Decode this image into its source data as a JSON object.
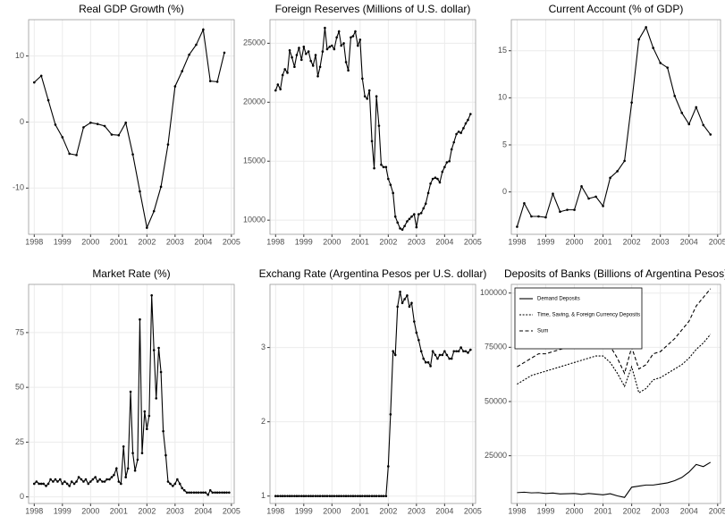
{
  "chart_data": [
    {
      "type": "line",
      "title": "Real GDP Growth (%)",
      "markers": true,
      "color": "#000000",
      "grid": true,
      "x": [
        1998,
        1998.25,
        1998.5,
        1998.75,
        1999,
        1999.25,
        1999.5,
        1999.75,
        2000,
        2000.25,
        2000.5,
        2000.75,
        2001,
        2001.25,
        2001.5,
        2001.75,
        2002,
        2002.25,
        2002.5,
        2002.75,
        2003,
        2003.25,
        2003.5,
        2003.75,
        2004,
        2004.25,
        2004.5,
        2004.75
      ],
      "values": [
        6,
        7,
        3.3,
        -0.4,
        -2.3,
        -4.8,
        -5,
        -0.8,
        -0.1,
        -0.3,
        -0.6,
        -1.9,
        -2,
        -0.1,
        -4.9,
        -10.5,
        -16,
        -13.5,
        -9.8,
        -3.4,
        5.4,
        7.7,
        10.2,
        11.7,
        14,
        6.2,
        6.1,
        10.5
      ],
      "xlim": [
        1997.8,
        2005.1
      ],
      "xticks": [
        1998,
        1999,
        2000,
        2001,
        2002,
        2003,
        2004,
        2005
      ],
      "ylim": [
        -17,
        15.5
      ],
      "yticks": [
        -10,
        0,
        10
      ]
    },
    {
      "type": "line",
      "title": "Foreign Reserves (Millions of U.S. dollar)",
      "markers": true,
      "color": "#000000",
      "grid": true,
      "x": [
        1998,
        1998.08,
        1998.17,
        1998.25,
        1998.33,
        1998.42,
        1998.5,
        1998.58,
        1998.67,
        1998.75,
        1998.83,
        1998.92,
        1999,
        1999.08,
        1999.17,
        1999.25,
        1999.33,
        1999.42,
        1999.5,
        1999.58,
        1999.67,
        1999.75,
        1999.83,
        1999.92,
        2000,
        2000.08,
        2000.17,
        2000.25,
        2000.33,
        2000.42,
        2000.5,
        2000.58,
        2000.67,
        2000.75,
        2000.83,
        2000.92,
        2001,
        2001.08,
        2001.17,
        2001.25,
        2001.33,
        2001.42,
        2001.5,
        2001.58,
        2001.67,
        2001.75,
        2001.83,
        2001.92,
        2002,
        2002.08,
        2002.17,
        2002.25,
        2002.33,
        2002.42,
        2002.5,
        2002.58,
        2002.67,
        2002.75,
        2002.83,
        2002.92,
        2003,
        2003.08,
        2003.17,
        2003.25,
        2003.33,
        2003.42,
        2003.5,
        2003.58,
        2003.67,
        2003.75,
        2003.83,
        2003.92,
        2004,
        2004.08,
        2004.17,
        2004.25,
        2004.33,
        2004.42,
        2004.5,
        2004.58,
        2004.67,
        2004.75,
        2004.83,
        2004.92
      ],
      "values": [
        21000,
        21500,
        21100,
        22300,
        22800,
        22500,
        24400,
        23800,
        23000,
        24000,
        24600,
        23600,
        24700,
        24100,
        24300,
        23500,
        23100,
        24000,
        22200,
        23000,
        24300,
        26300,
        24500,
        24700,
        24800,
        24500,
        25500,
        26000,
        24800,
        25000,
        23400,
        22700,
        25500,
        25600,
        26000,
        24800,
        25300,
        22000,
        20500,
        20300,
        21000,
        16700,
        14400,
        20500,
        18000,
        14700,
        14500,
        14500,
        13500,
        13000,
        12300,
        10300,
        9800,
        9300,
        9200,
        9500,
        9900,
        10100,
        10300,
        10500,
        9400,
        10500,
        10600,
        11000,
        11400,
        12300,
        13100,
        13500,
        13600,
        13500,
        13200,
        14100,
        14500,
        14900,
        15000,
        16000,
        16600,
        17300,
        17500,
        17400,
        17800,
        18200,
        18500,
        19000
      ],
      "xlim": [
        1997.8,
        2005.1
      ],
      "xticks": [
        1998,
        1999,
        2000,
        2001,
        2002,
        2003,
        2004,
        2005
      ],
      "ylim": [
        8800,
        27000
      ],
      "yticks": [
        10000,
        15000,
        20000,
        25000
      ]
    },
    {
      "type": "line",
      "title": "Current Account (% of GDP)",
      "markers": true,
      "color": "#000000",
      "grid": true,
      "x": [
        1998,
        1998.25,
        1998.5,
        1998.75,
        1999,
        1999.25,
        1999.5,
        1999.75,
        2000,
        2000.25,
        2000.5,
        2000.75,
        2001,
        2001.25,
        2001.5,
        2001.75,
        2002,
        2002.25,
        2002.5,
        2002.75,
        2003,
        2003.25,
        2003.5,
        2003.75,
        2004,
        2004.25,
        2004.5,
        2004.75
      ],
      "values": [
        -3.7,
        -1.2,
        -2.6,
        -2.6,
        -2.7,
        -0.2,
        -2.1,
        -1.9,
        -1.9,
        0.6,
        -0.7,
        -0.5,
        -1.5,
        1.5,
        2.2,
        3.3,
        9.5,
        16.2,
        17.5,
        15.3,
        13.7,
        13.2,
        10.2,
        8.4,
        7.2,
        9,
        7.1,
        6.1
      ],
      "xlim": [
        1997.8,
        2005.1
      ],
      "xticks": [
        1998,
        1999,
        2000,
        2001,
        2002,
        2003,
        2004,
        2005
      ],
      "ylim": [
        -4.5,
        18.3
      ],
      "yticks": [
        0,
        5,
        10,
        15
      ]
    },
    {
      "type": "line",
      "title": "Market Rate (%)",
      "markers": true,
      "color": "#000000",
      "grid": true,
      "x": [
        1998,
        1998.08,
        1998.17,
        1998.25,
        1998.33,
        1998.42,
        1998.5,
        1998.58,
        1998.67,
        1998.75,
        1998.83,
        1998.92,
        1999,
        1999.08,
        1999.17,
        1999.25,
        1999.33,
        1999.42,
        1999.5,
        1999.58,
        1999.67,
        1999.75,
        1999.83,
        1999.92,
        2000,
        2000.08,
        2000.17,
        2000.25,
        2000.33,
        2000.42,
        2000.5,
        2000.58,
        2000.67,
        2000.75,
        2000.83,
        2000.92,
        2001,
        2001.08,
        2001.17,
        2001.25,
        2001.33,
        2001.42,
        2001.5,
        2001.58,
        2001.67,
        2001.75,
        2001.83,
        2001.92,
        2002,
        2002.08,
        2002.17,
        2002.25,
        2002.33,
        2002.42,
        2002.5,
        2002.58,
        2002.67,
        2002.75,
        2002.83,
        2002.92,
        2003,
        2003.08,
        2003.17,
        2003.25,
        2003.33,
        2003.42,
        2003.5,
        2003.58,
        2003.67,
        2003.75,
        2003.83,
        2003.92,
        2004,
        2004.08,
        2004.17,
        2004.25,
        2004.33,
        2004.42,
        2004.5,
        2004.58,
        2004.67,
        2004.75,
        2004.83,
        2004.92
      ],
      "values": [
        6,
        7,
        6,
        6,
        6,
        5,
        6,
        8,
        7,
        8,
        7,
        8,
        6,
        7,
        6,
        5,
        7,
        6,
        7,
        9,
        8,
        7,
        8,
        6,
        7,
        8,
        9,
        7,
        8,
        7,
        7,
        8,
        8,
        9,
        10,
        13,
        7,
        6,
        23,
        9,
        13,
        48,
        20,
        12,
        17,
        81,
        20,
        39,
        31,
        37,
        92,
        67,
        45,
        68,
        57,
        30,
        19,
        7,
        6,
        5,
        6,
        8,
        6,
        4,
        3,
        2,
        2,
        2,
        2,
        2,
        2,
        2,
        2,
        2,
        1,
        3,
        2,
        2,
        2,
        2,
        2,
        2,
        2,
        2
      ],
      "xlim": [
        1997.8,
        2005.1
      ],
      "xticks": [
        1998,
        1999,
        2000,
        2001,
        2002,
        2003,
        2004,
        2005
      ],
      "ylim": [
        -3,
        97
      ],
      "yticks": [
        0,
        25,
        50,
        75
      ]
    },
    {
      "type": "line",
      "title": "Exchang Rate (Argentina Pesos per U.S. dollar)",
      "markers": true,
      "color": "#000000",
      "grid": true,
      "x": [
        1998,
        1998.08,
        1998.17,
        1998.25,
        1998.33,
        1998.42,
        1998.5,
        1998.58,
        1998.67,
        1998.75,
        1998.83,
        1998.92,
        1999,
        1999.08,
        1999.17,
        1999.25,
        1999.33,
        1999.42,
        1999.5,
        1999.58,
        1999.67,
        1999.75,
        1999.83,
        1999.92,
        2000,
        2000.08,
        2000.17,
        2000.25,
        2000.33,
        2000.42,
        2000.5,
        2000.58,
        2000.67,
        2000.75,
        2000.83,
        2000.92,
        2001,
        2001.08,
        2001.17,
        2001.25,
        2001.33,
        2001.42,
        2001.5,
        2001.58,
        2001.67,
        2001.75,
        2001.83,
        2001.92,
        2002,
        2002.08,
        2002.17,
        2002.25,
        2002.33,
        2002.42,
        2002.5,
        2002.58,
        2002.67,
        2002.75,
        2002.83,
        2002.92,
        2003,
        2003.08,
        2003.17,
        2003.25,
        2003.33,
        2003.42,
        2003.5,
        2003.58,
        2003.67,
        2003.75,
        2003.83,
        2003.92,
        2004,
        2004.08,
        2004.17,
        2004.25,
        2004.33,
        2004.42,
        2004.5,
        2004.58,
        2004.67,
        2004.75,
        2004.83,
        2004.92
      ],
      "values": [
        1,
        1,
        1,
        1,
        1,
        1,
        1,
        1,
        1,
        1,
        1,
        1,
        1,
        1,
        1,
        1,
        1,
        1,
        1,
        1,
        1,
        1,
        1,
        1,
        1,
        1,
        1,
        1,
        1,
        1,
        1,
        1,
        1,
        1,
        1,
        1,
        1,
        1,
        1,
        1,
        1,
        1,
        1,
        1,
        1,
        1,
        1,
        1,
        1.4,
        2.1,
        2.95,
        2.9,
        3.55,
        3.75,
        3.6,
        3.65,
        3.7,
        3.55,
        3.6,
        3.35,
        3.2,
        3.1,
        2.95,
        2.85,
        2.8,
        2.8,
        2.75,
        2.95,
        2.9,
        2.85,
        2.9,
        2.9,
        2.95,
        2.9,
        2.85,
        2.85,
        2.95,
        2.95,
        2.95,
        3.0,
        2.95,
        2.95,
        2.93,
        2.97
      ],
      "xlim": [
        1997.8,
        2005.1
      ],
      "xticks": [
        1998,
        1999,
        2000,
        2001,
        2002,
        2003,
        2004,
        2005
      ],
      "ylim": [
        0.9,
        3.85
      ],
      "yticks": [
        1,
        2,
        3
      ]
    },
    {
      "type": "line",
      "title": "Deposits of Banks (Billions of Argentina Pesos)",
      "markers": false,
      "grid": true,
      "legend": "top-left",
      "x": [
        1998,
        1998.25,
        1998.5,
        1998.75,
        1999,
        1999.25,
        1999.5,
        1999.75,
        2000,
        2000.25,
        2000.5,
        2000.75,
        2001,
        2001.25,
        2001.5,
        2001.75,
        2002,
        2002.25,
        2002.5,
        2002.75,
        2003,
        2003.25,
        2003.5,
        2003.75,
        2004,
        2004.25,
        2004.5,
        2004.75
      ],
      "series": [
        {
          "name": "Demand Deposits",
          "color": "#000000",
          "linestyle": "solid",
          "values": [
            8000,
            8200,
            7900,
            8000,
            7600,
            7800,
            7400,
            7500,
            7600,
            7200,
            7600,
            7300,
            7000,
            7500,
            6500,
            5800,
            10500,
            11000,
            11500,
            11500,
            12000,
            12500,
            13500,
            15000,
            17500,
            21000,
            20000,
            22000
          ]
        },
        {
          "name": "Time, Saving, & Foreign Currency Deposits",
          "color": "#000000",
          "linestyle": "dotted",
          "values": [
            58000,
            60000,
            62000,
            63000,
            64000,
            65000,
            66000,
            67000,
            68000,
            69000,
            70000,
            71000,
            71000,
            68000,
            63000,
            57000,
            66000,
            54000,
            56000,
            60000,
            61000,
            63000,
            65000,
            67000,
            70000,
            74000,
            77000,
            81000
          ]
        },
        {
          "name": "Sum",
          "color": "#000000",
          "linestyle": "dashed",
          "values": [
            66000,
            68000,
            70000,
            72000,
            72000,
            73000,
            74000,
            75000,
            76000,
            76500,
            77500,
            78500,
            78000,
            75500,
            70000,
            63000,
            75000,
            65000,
            67000,
            72000,
            73000,
            76000,
            79000,
            83000,
            87000,
            94000,
            98000,
            102000
          ]
        }
      ],
      "xlim": [
        1997.8,
        2005.1
      ],
      "xticks": [
        1998,
        1999,
        2000,
        2001,
        2002,
        2003,
        2004,
        2005
      ],
      "ylim": [
        3000,
        104000
      ],
      "yticks": [
        25000,
        50000,
        75000,
        100000
      ]
    }
  ]
}
